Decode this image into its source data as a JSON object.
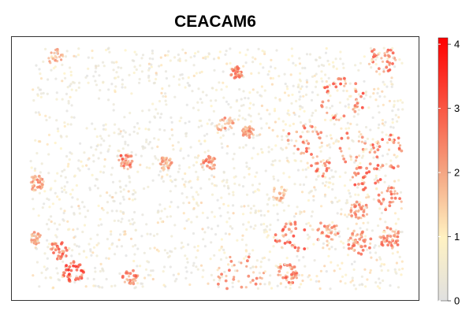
{
  "chart_data": {
    "type": "scatter",
    "title": "CEACAM6",
    "xlabel": "",
    "ylabel": "",
    "description_values": "spatial expression map; point color encodes expression level",
    "color_scale": {
      "min": 0,
      "max": 4.1,
      "ticks": [
        0,
        1,
        2,
        3,
        4
      ],
      "tick_labels": [
        "0",
        "1",
        "2",
        "3",
        "4"
      ],
      "colors": [
        "#e0e0e0",
        "#fff2c2",
        "#f4a582",
        "#ff0000"
      ]
    },
    "grid": false,
    "legend_placement": "right"
  }
}
